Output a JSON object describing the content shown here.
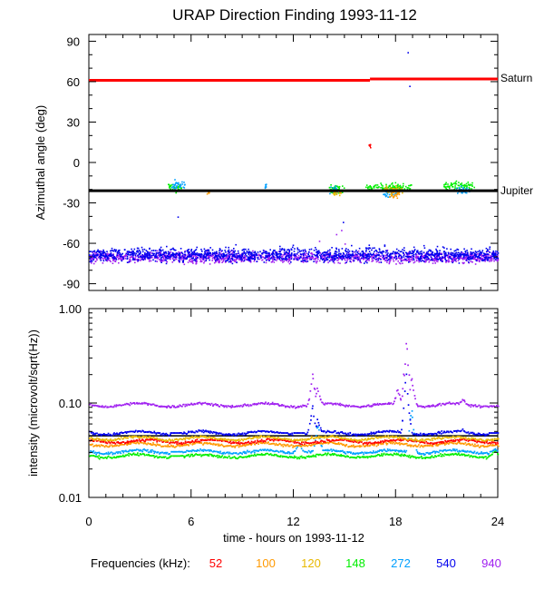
{
  "chart_data": [
    {
      "type": "scatter",
      "title": "URAP Direction Finding  1993-11-12",
      "ylabel": "Azimuthal angle (deg)",
      "ylim": [
        -95,
        95
      ],
      "yticks": [
        -90,
        -60,
        -30,
        0,
        30,
        60,
        90
      ],
      "ytick_labels": [
        "-90",
        "-60",
        "-30",
        "0",
        "30",
        "60",
        "90"
      ],
      "xlim": [
        0,
        24
      ],
      "reference_lines": [
        {
          "label": "Saturn",
          "color": "#ff0000",
          "segments": [
            [
              0,
              16.5,
              61
            ],
            [
              16.5,
              24,
              62
            ]
          ]
        },
        {
          "label": "Jupiter",
          "color": "#000000",
          "segments": [
            [
              0,
              24,
              -21
            ]
          ]
        }
      ],
      "series": [
        {
          "name": "940",
          "color": "#a020f0",
          "band": {
            "x": [
              0,
              24
            ],
            "center": -70,
            "spread": 7
          },
          "outliers": [
            [
              13.5,
              -58
            ],
            [
              14.5,
              -53
            ],
            [
              14.8,
              -50
            ],
            [
              15.0,
              -60
            ]
          ]
        },
        {
          "name": "540",
          "color": "#0000ee",
          "band": {
            "x": [
              0,
              24
            ],
            "center": -68,
            "spread": 9
          },
          "outliers": [
            [
              5.2,
              -40
            ],
            [
              14.9,
              -44
            ],
            [
              18.8,
              57
            ],
            [
              18.7,
              82
            ]
          ]
        },
        {
          "name": "148",
          "color": "#00ee00",
          "clusters": [
            [
              4.6,
              5.4,
              -18
            ],
            [
              14.0,
              15.0,
              -19
            ],
            [
              16.2,
              18.9,
              -18
            ],
            [
              20.8,
              22.6,
              -17
            ]
          ]
        },
        {
          "name": "272",
          "color": "#00a0ff",
          "clusters": [
            [
              4.8,
              5.6,
              -16
            ],
            [
              10.3,
              10.4,
              -18
            ],
            [
              14.1,
              14.6,
              -20
            ],
            [
              17.2,
              18.0,
              -22
            ],
            [
              21.5,
              22.3,
              -20
            ]
          ]
        },
        {
          "name": "120",
          "color": "#e8b800",
          "clusters": [
            [
              17.3,
              18.4,
              -20
            ],
            [
              14.3,
              14.8,
              -22
            ]
          ]
        },
        {
          "name": "100",
          "color": "#ff9900",
          "clusters": [
            [
              17.6,
              18.2,
              -23
            ],
            [
              6.9,
              7.1,
              -22
            ]
          ]
        },
        {
          "name": "52",
          "color": "#ff0000",
          "clusters": [
            [
              16.4,
              16.5,
              13
            ]
          ]
        }
      ]
    },
    {
      "type": "line",
      "ylabel": "intensity (microvolt/sqrt(Hz))",
      "xlabel": "time - hours on 1993-11-12",
      "yscale": "log",
      "ylim": [
        0.01,
        1.0
      ],
      "yticks": [
        0.01,
        0.1,
        1.0
      ],
      "ytick_labels": [
        "0.01",
        "0.10",
        "1.00"
      ],
      "xlim": [
        0,
        24
      ],
      "xticks": [
        0,
        6,
        12,
        18,
        24
      ],
      "xtick_labels": [
        "0",
        "6",
        "12",
        "18",
        "24"
      ],
      "reference_line": {
        "y": 0.045,
        "color": "#000000"
      },
      "series": [
        {
          "name": "52",
          "color": "#ff0000",
          "baseline": 0.04
        },
        {
          "name": "100",
          "color": "#ff9900",
          "baseline": 0.037
        },
        {
          "name": "120",
          "color": "#e8b800",
          "baseline": 0.043
        },
        {
          "name": "148",
          "color": "#00ee00",
          "baseline": 0.028
        },
        {
          "name": "272",
          "color": "#00a0ff",
          "baseline": 0.031
        },
        {
          "name": "540",
          "color": "#0000ee",
          "baseline": 0.049
        },
        {
          "name": "940",
          "color": "#a020f0",
          "baseline": 0.097
        }
      ],
      "bursts": [
        {
          "x": 5.1,
          "peak": 0.055,
          "series": [
            "540",
            "272",
            "148"
          ]
        },
        {
          "x": 11.3,
          "peak": 0.052,
          "series": [
            "540"
          ]
        },
        {
          "x": 12.3,
          "peak": 0.09,
          "series": [
            "540",
            "272"
          ]
        },
        {
          "x": 13.1,
          "peak": 0.22,
          "series": [
            "940",
            "540"
          ]
        },
        {
          "x": 13.4,
          "peak": 0.16,
          "series": [
            "940",
            "540",
            "272"
          ]
        },
        {
          "x": 17.6,
          "peak": 0.07,
          "series": [
            "540",
            "272"
          ]
        },
        {
          "x": 18.1,
          "peak": 0.16,
          "series": [
            "940"
          ]
        },
        {
          "x": 18.6,
          "peak": 0.5,
          "series": [
            "940",
            "540"
          ]
        },
        {
          "x": 18.9,
          "peak": 0.22,
          "series": [
            "940",
            "272"
          ]
        },
        {
          "x": 21.2,
          "peak": 0.065,
          "series": [
            "540",
            "272",
            "148"
          ]
        },
        {
          "x": 21.9,
          "peak": 0.12,
          "series": [
            "940",
            "540"
          ]
        },
        {
          "x": 23.8,
          "peak": 0.075,
          "series": [
            "540",
            "272",
            "148"
          ]
        }
      ]
    }
  ],
  "legend": {
    "title": "Frequencies (kHz):",
    "items": [
      {
        "label": "52",
        "color": "#ff0000"
      },
      {
        "label": "100",
        "color": "#ff9900"
      },
      {
        "label": "120",
        "color": "#e8b800"
      },
      {
        "label": "148",
        "color": "#00ee00"
      },
      {
        "label": "272",
        "color": "#00a0ff"
      },
      {
        "label": "540",
        "color": "#0000ee"
      },
      {
        "label": "940",
        "color": "#a020f0"
      }
    ]
  }
}
